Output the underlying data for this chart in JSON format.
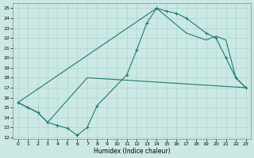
{
  "xlabel": "Humidex (Indice chaleur)",
  "xlim": [
    -0.5,
    23.5
  ],
  "ylim": [
    11.8,
    25.5
  ],
  "xticks": [
    0,
    1,
    2,
    3,
    4,
    5,
    6,
    7,
    8,
    9,
    10,
    11,
    12,
    13,
    14,
    15,
    16,
    17,
    18,
    19,
    20,
    21,
    22,
    23
  ],
  "yticks": [
    12,
    13,
    14,
    15,
    16,
    17,
    18,
    19,
    20,
    21,
    22,
    23,
    24,
    25
  ],
  "bg_color": "#cce8e5",
  "line_color": "#1d7a6e",
  "grid_color": "#aad4ce",
  "line1_x": [
    0,
    1,
    2,
    3,
    4,
    5,
    6,
    7,
    8,
    11,
    12,
    13,
    14,
    15,
    16,
    17,
    19,
    20,
    21,
    22,
    23
  ],
  "line1_y": [
    15.5,
    15.0,
    14.5,
    13.5,
    13.2,
    12.9,
    12.2,
    13.0,
    15.2,
    18.3,
    20.8,
    23.5,
    25.0,
    24.7,
    24.5,
    24.0,
    22.5,
    22.0,
    20.0,
    18.0,
    17.0
  ],
  "line2_x": [
    0,
    1,
    2,
    3,
    7,
    23
  ],
  "line2_y": [
    15.5,
    15.0,
    14.5,
    13.5,
    18.0,
    17.0
  ],
  "line3_x": [
    0,
    14,
    17,
    19,
    20,
    21,
    22,
    23
  ],
  "line3_y": [
    15.5,
    25.0,
    22.5,
    21.8,
    22.2,
    21.8,
    18.0,
    17.0
  ]
}
